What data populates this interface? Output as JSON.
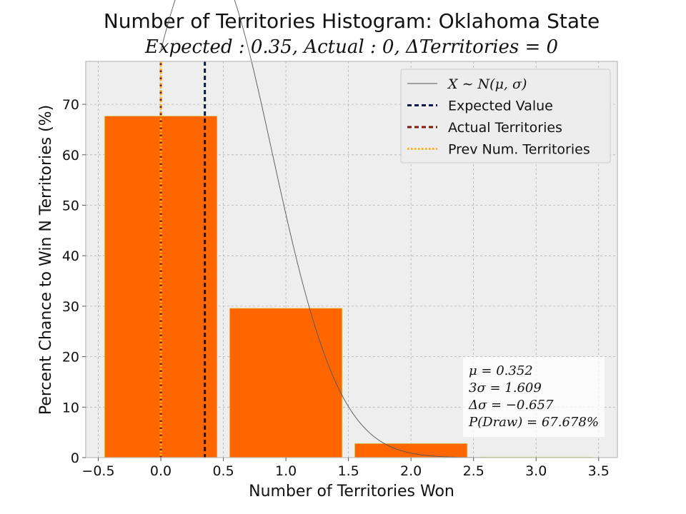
{
  "chart_data": {
    "type": "bar",
    "title": "Number of Territories Histogram: Oklahoma State",
    "subtitle": "Expected : 0.35, Actual : 0, ΔTerritories = 0",
    "xlabel": "Number of Territories Won",
    "ylabel": "Percent Chance to Win N Territories (%)",
    "xlim": [
      -0.6,
      3.65
    ],
    "ylim": [
      0,
      78.5
    ],
    "xticks": [
      -0.5,
      0.0,
      0.5,
      1.0,
      1.5,
      2.0,
      2.5,
      3.0,
      3.5
    ],
    "xtick_labels": [
      "−0.5",
      "0.0",
      "0.5",
      "1.0",
      "1.5",
      "2.0",
      "2.5",
      "3.0",
      "3.5"
    ],
    "yticks": [
      0,
      10,
      20,
      30,
      40,
      50,
      60,
      70
    ],
    "ytick_labels": [
      "0",
      "10",
      "20",
      "30",
      "40",
      "50",
      "60",
      "70"
    ],
    "grid": true,
    "bars": [
      {
        "x": 0,
        "value": 67.678
      },
      {
        "x": 1,
        "value": 29.6
      },
      {
        "x": 2,
        "value": 2.8
      },
      {
        "x": 3,
        "value": 0.1
      }
    ],
    "bar_width": 0.9,
    "bar_color": "#ff6600",
    "normal_curve": {
      "mu": 0.352,
      "sigma": 0.5363,
      "scale": 100,
      "x_start": 0.0,
      "x_end": 3.5,
      "color": "#555555"
    },
    "vlines": [
      {
        "name": "Expected Value",
        "x": 0.352,
        "color": "#0b1a44",
        "style": "dashed"
      },
      {
        "name": "Actual Territories",
        "x": 0,
        "color": "#7a1a10",
        "style": "dashed"
      },
      {
        "name": "Prev Num. Territories",
        "x": 0,
        "color": "#ffb020",
        "style": "dotted"
      }
    ],
    "legend": {
      "placement": "top-right",
      "entries": [
        {
          "label": "X ∼ N(μ, σ)",
          "kind": "curve",
          "color": "#555555"
        },
        {
          "label": "Expected Value",
          "kind": "dashed",
          "color": "#0b1a44"
        },
        {
          "label": "Actual Territories",
          "kind": "dashed",
          "color": "#7a1a10"
        },
        {
          "label": "Prev Num. Territories",
          "kind": "dotted",
          "color": "#ffb020"
        }
      ]
    },
    "stats": {
      "placement": "bottom-right",
      "lines": [
        "μ = 0.352",
        "3σ = 1.609",
        "Δσ = −0.657",
        "P(Draw) = 67.678%"
      ]
    }
  }
}
